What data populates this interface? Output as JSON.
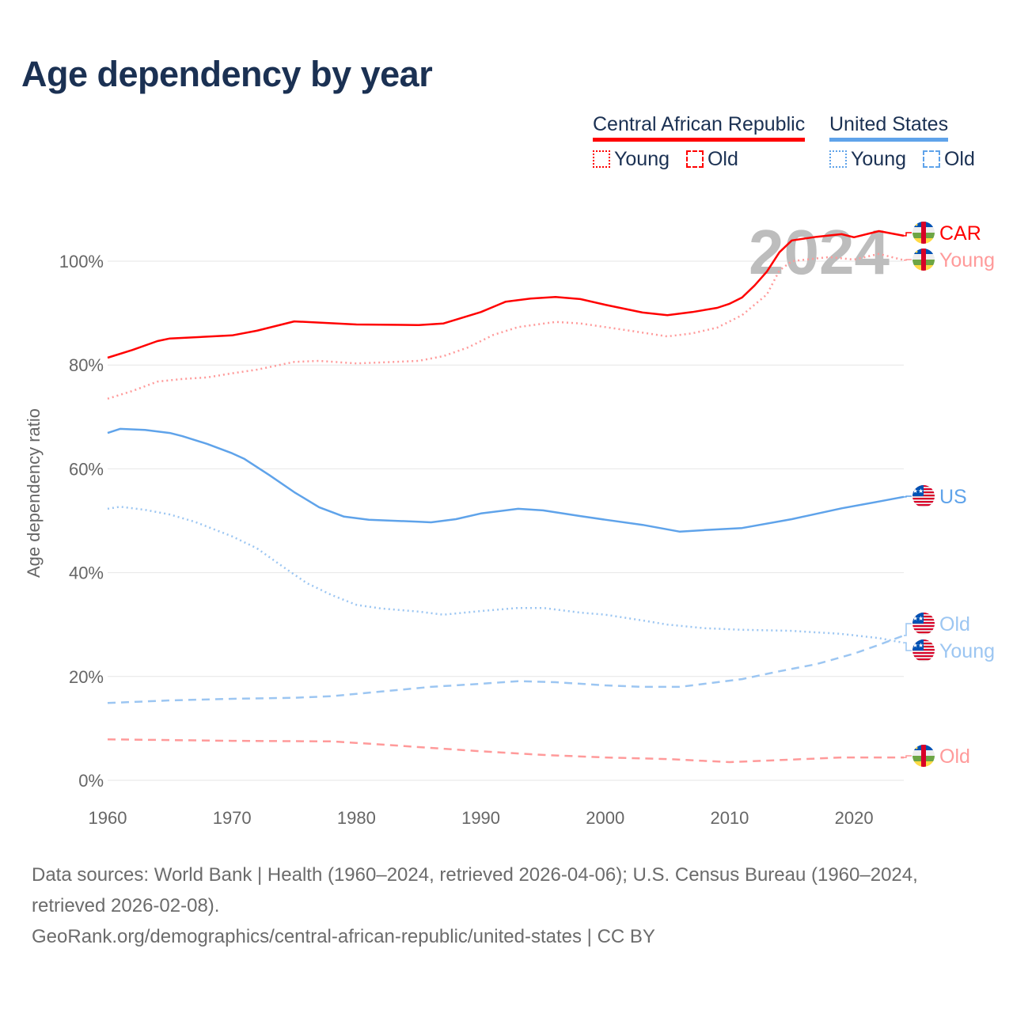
{
  "title": "Age dependency by year",
  "legend": {
    "car": {
      "name": "Central African Republic",
      "young": "Young",
      "old": "Old",
      "color": "#ff0000"
    },
    "us": {
      "name": "United States",
      "young": "Young",
      "old": "Old",
      "color": "#5fa3ea"
    }
  },
  "footer": {
    "sources": "Data sources: World Bank | Health (1960–2024, retrieved 2026-04-06); U.S. Census Bureau (1960–2024, retrieved 2026-02-08).",
    "url": "GeoRank.org/demographics/central-african-republic/united-states | CC BY"
  },
  "chart_data": {
    "type": "line",
    "title": "Age dependency by year",
    "ylabel": "Age dependency ratio",
    "xlabel": "",
    "xlim": [
      1960,
      2024
    ],
    "ylim": [
      0,
      100
    ],
    "x_ticks": [
      "1960",
      "1970",
      "1980",
      "1990",
      "2000",
      "2010",
      "2020"
    ],
    "y_ticks": [
      "0%",
      "20%",
      "40%",
      "60%",
      "80%",
      "100%"
    ],
    "current_year": "2024",
    "series": [
      {
        "name": "CAR",
        "label": "CAR",
        "country": "Central African Republic",
        "style": "solid",
        "color": "#ff0000",
        "x": [
          1960,
          1962,
          1964,
          1965,
          1970,
          1972,
          1975,
          1980,
          1985,
          1987,
          1990,
          1992,
          1994,
          1996,
          1998,
          2000,
          2003,
          2005,
          2007,
          2009,
          2010,
          2011,
          2012,
          2013,
          2014,
          2015,
          2017,
          2019,
          2020,
          2022,
          2024
        ],
        "y": [
          81.4,
          82.9,
          84.6,
          85.1,
          85.7,
          86.6,
          88.4,
          87.8,
          87.7,
          88.0,
          90.2,
          92.2,
          92.8,
          93.1,
          92.7,
          91.6,
          90.1,
          89.6,
          90.2,
          91.0,
          91.8,
          93.0,
          95.3,
          98.0,
          101.7,
          104.0,
          104.7,
          105.2,
          104.6,
          105.8,
          104.9
        ]
      },
      {
        "name": "CAR Young",
        "label": "Young",
        "country": "Central African Republic",
        "style": "dotted",
        "color": "#ff9a9a",
        "x": [
          1960,
          1962,
          1964,
          1966,
          1968,
          1970,
          1972,
          1975,
          1977,
          1980,
          1985,
          1987,
          1989,
          1991,
          1993,
          1996,
          1998,
          2000,
          2002,
          2005,
          2007,
          2009,
          2011,
          2013,
          2014,
          2015,
          2018,
          2020,
          2022,
          2024
        ],
        "y": [
          73.5,
          75.0,
          76.8,
          77.3,
          77.6,
          78.4,
          79.1,
          80.6,
          80.8,
          80.3,
          80.8,
          81.7,
          83.4,
          85.8,
          87.3,
          88.3,
          88.0,
          87.3,
          86.6,
          85.5,
          86.1,
          87.2,
          89.6,
          93.6,
          98.2,
          100.0,
          100.8,
          100.3,
          101.4,
          100.2
        ]
      },
      {
        "name": "CAR Old",
        "label": "Old",
        "country": "Central African Republic",
        "style": "dashed",
        "color": "#ff9a9a",
        "x": [
          1960,
          1970,
          1978,
          1982,
          1985,
          1990,
          1995,
          2000,
          2005,
          2010,
          2015,
          2019,
          2024
        ],
        "y": [
          7.9,
          7.6,
          7.5,
          6.9,
          6.4,
          5.6,
          4.9,
          4.4,
          4.1,
          3.5,
          4.0,
          4.4,
          4.4
        ]
      },
      {
        "name": "US",
        "label": "US",
        "country": "United States",
        "style": "solid",
        "color": "#5fa3ea",
        "x": [
          1960,
          1961,
          1963,
          1965,
          1966,
          1968,
          1970,
          1971,
          1973,
          1975,
          1977,
          1979,
          1981,
          1985,
          1986,
          1988,
          1990,
          1993,
          1995,
          1998,
          2000,
          2003,
          2006,
          2008,
          2011,
          2015,
          2019,
          2022,
          2024
        ],
        "y": [
          66.9,
          67.7,
          67.5,
          66.9,
          66.3,
          64.8,
          63.0,
          61.9,
          58.8,
          55.5,
          52.6,
          50.8,
          50.2,
          49.8,
          49.7,
          50.3,
          51.4,
          52.3,
          52.0,
          50.9,
          50.2,
          49.2,
          47.9,
          48.2,
          48.6,
          50.3,
          52.4,
          53.7,
          54.6
        ]
      },
      {
        "name": "US Young",
        "label": "Young",
        "country": "United States",
        "style": "dotted",
        "color": "#9cc6f2",
        "x": [
          1960,
          1961,
          1963,
          1965,
          1967,
          1970,
          1972,
          1974,
          1976,
          1978,
          1980,
          1982,
          1985,
          1987,
          1990,
          1993,
          1995,
          1998,
          2000,
          2003,
          2005,
          2008,
          2011,
          2015,
          2019,
          2022,
          2024
        ],
        "y": [
          52.3,
          52.7,
          52.1,
          51.2,
          49.8,
          47.0,
          44.7,
          41.3,
          38.0,
          35.7,
          33.8,
          33.1,
          32.5,
          31.9,
          32.6,
          33.2,
          33.2,
          32.3,
          31.9,
          30.8,
          30.0,
          29.3,
          29.0,
          28.8,
          28.2,
          27.4,
          26.5
        ]
      },
      {
        "name": "US Old",
        "label": "Old",
        "country": "United States",
        "style": "dashed",
        "color": "#9cc6f2",
        "x": [
          1960,
          1965,
          1970,
          1975,
          1978,
          1982,
          1986,
          1990,
          1993,
          1996,
          2000,
          2003,
          2006,
          2008,
          2011,
          2014,
          2017,
          2020,
          2022,
          2024
        ],
        "y": [
          14.9,
          15.4,
          15.7,
          15.9,
          16.2,
          17.1,
          18.0,
          18.6,
          19.1,
          18.9,
          18.3,
          18.0,
          18.0,
          18.6,
          19.5,
          21.0,
          22.4,
          24.4,
          26.1,
          27.9
        ]
      }
    ]
  }
}
